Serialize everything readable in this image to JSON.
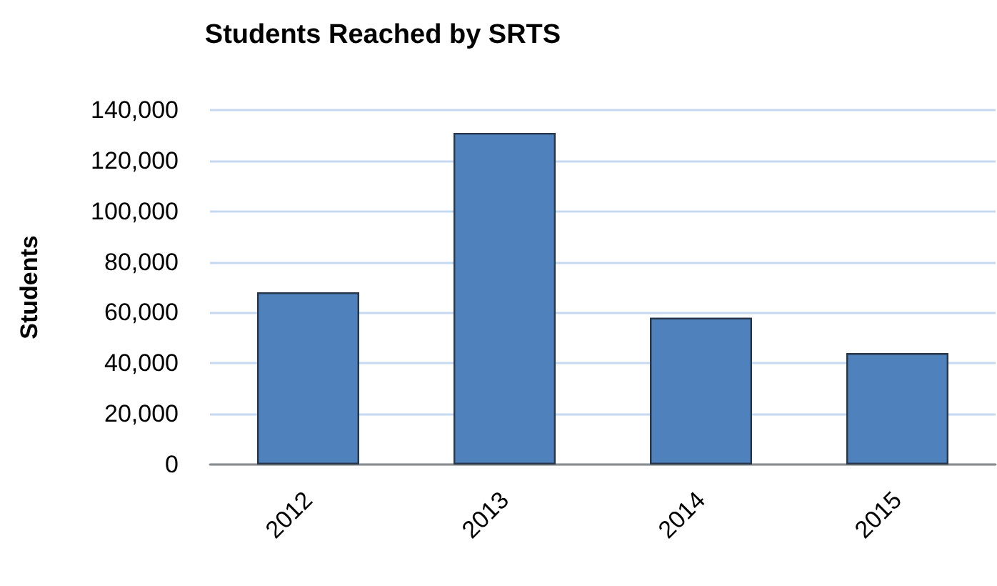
{
  "chart_data": {
    "type": "bar",
    "title": "Students Reached by SRTS",
    "ylabel": "Students",
    "categories": [
      "2012",
      "2013",
      "2014",
      "2015"
    ],
    "values": [
      68000,
      131000,
      58000,
      44000
    ],
    "color": "#4f81bd",
    "ylim": [
      0,
      140000
    ],
    "yticks": [
      {
        "value": 0,
        "label": "0"
      },
      {
        "value": 20000,
        "label": "20,000"
      },
      {
        "value": 40000,
        "label": "40,000"
      },
      {
        "value": 60000,
        "label": "60,000"
      },
      {
        "value": 80000,
        "label": "80,000"
      },
      {
        "value": 100000,
        "label": "100,000"
      },
      {
        "value": 120000,
        "label": "120,000"
      },
      {
        "value": 140000,
        "label": "140,000"
      }
    ],
    "grid": "y"
  }
}
